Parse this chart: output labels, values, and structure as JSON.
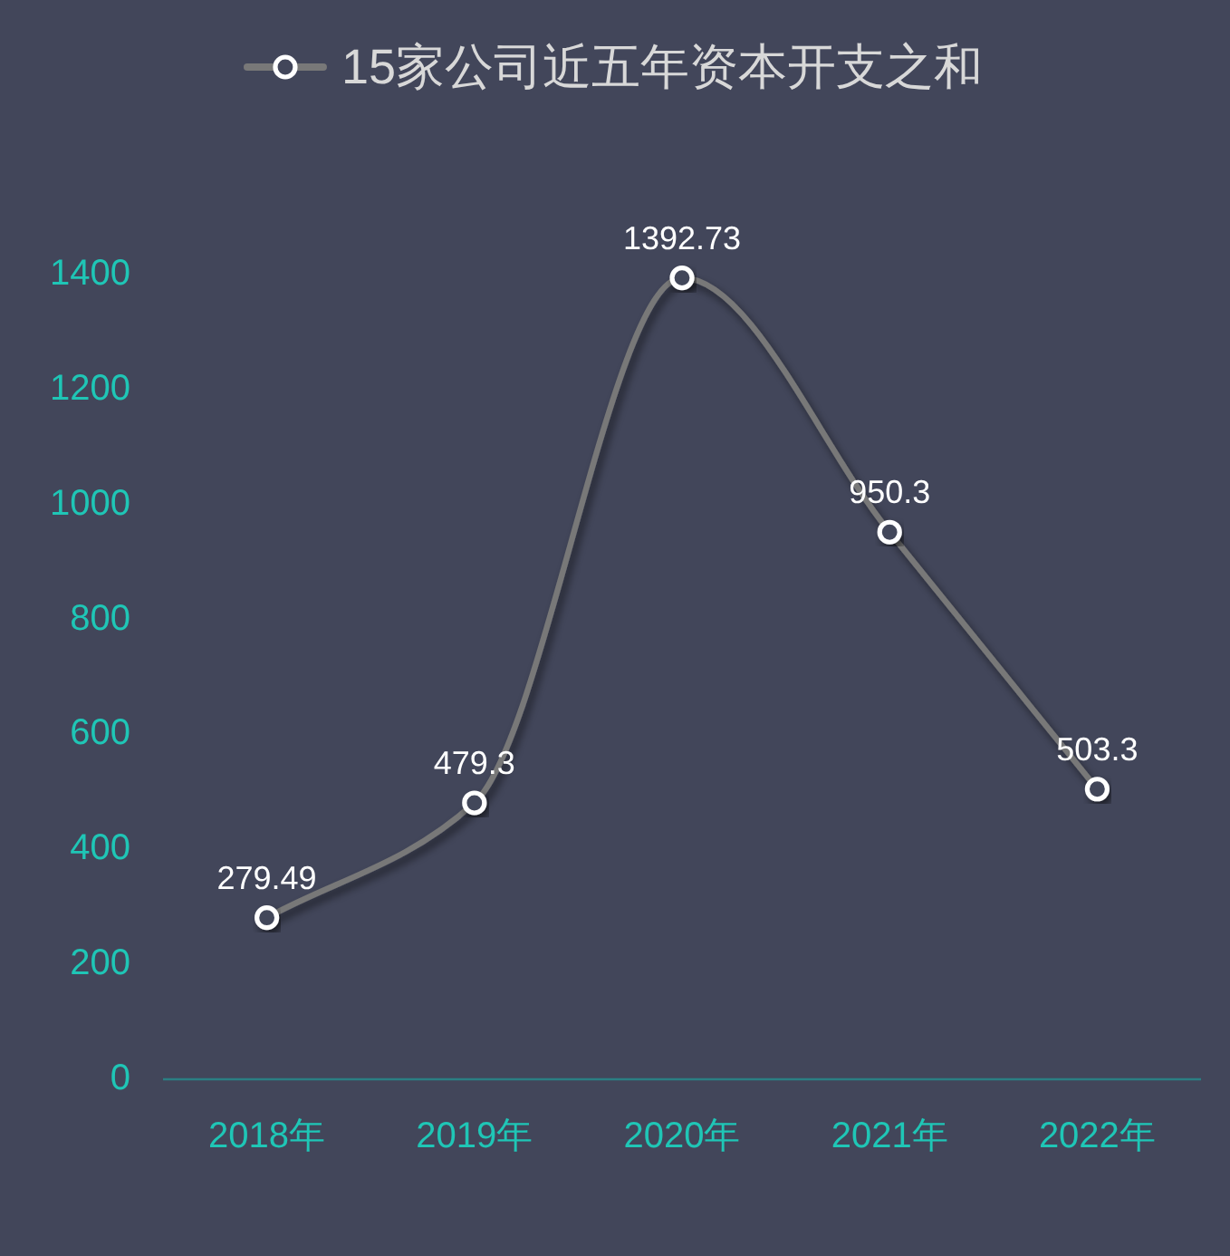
{
  "chart_data": {
    "type": "line",
    "categories": [
      "2018年",
      "2019年",
      "2020年",
      "2021年",
      "2022年"
    ],
    "series": [
      {
        "name": "15家公司近五年资本开支之和",
        "color": "#787878",
        "values": [
          279.49,
          479.3,
          1392.73,
          950.3,
          503.3
        ]
      }
    ],
    "ylim": [
      0,
      1400
    ],
    "yticks": [
      0,
      200,
      400,
      600,
      800,
      1000,
      1200,
      1400
    ],
    "data_labels": true,
    "legend": "top",
    "marker": "circle"
  }
}
